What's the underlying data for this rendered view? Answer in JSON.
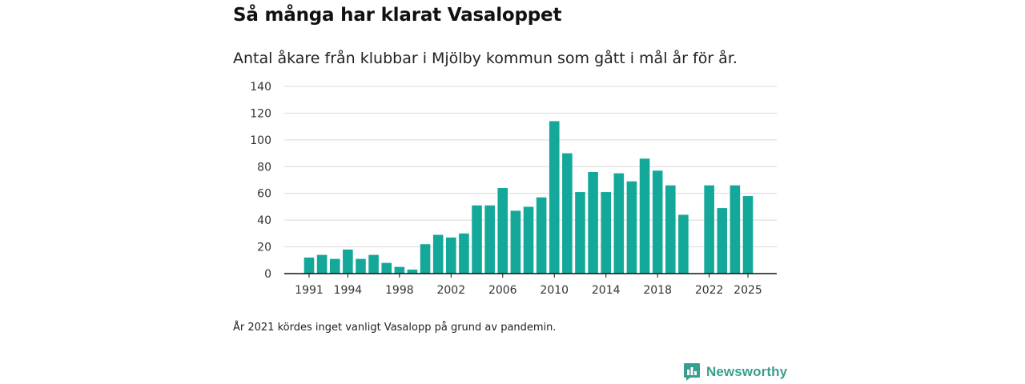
{
  "title": "Så många har klarat Vasaloppet",
  "subtitle": "Antal åkare från klubbar i Mjölby kommun som gått i mål år för år.",
  "footnote": "År 2021 kördes inget vanligt Vasalopp på grund av pandemin.",
  "brand": {
    "name": "Newsworthy",
    "logo_icon": "newsworthy-logo-icon",
    "color": "#3a9e8f"
  },
  "colors": {
    "bar": "#14a89a",
    "grid": "#d9d9d9",
    "axis": "#111111"
  },
  "chart_data": {
    "type": "bar",
    "title": "Så många har klarat Vasaloppet",
    "subtitle": "Antal åkare från klubbar i Mjölby kommun som gått i mål år för år.",
    "xlabel": "",
    "ylabel": "",
    "ylim": [
      0,
      140
    ],
    "yticks": [
      0,
      20,
      40,
      60,
      80,
      100,
      120,
      140
    ],
    "xticks": [
      1991,
      1994,
      1998,
      2002,
      2006,
      2010,
      2014,
      2018,
      2022,
      2025
    ],
    "x_range": [
      1991,
      2025
    ],
    "grid": true,
    "categories": [
      1991,
      1992,
      1993,
      1994,
      1995,
      1996,
      1997,
      1998,
      1999,
      2000,
      2001,
      2002,
      2003,
      2004,
      2005,
      2006,
      2007,
      2008,
      2009,
      2010,
      2011,
      2012,
      2013,
      2014,
      2015,
      2016,
      2017,
      2018,
      2019,
      2020,
      2021,
      2022,
      2023,
      2024,
      2025
    ],
    "values": [
      12,
      14,
      11,
      18,
      11,
      14,
      8,
      5,
      3,
      22,
      29,
      27,
      30,
      51,
      51,
      64,
      47,
      50,
      57,
      114,
      90,
      61,
      76,
      61,
      75,
      69,
      86,
      77,
      66,
      44,
      null,
      66,
      49,
      66,
      58
    ]
  }
}
